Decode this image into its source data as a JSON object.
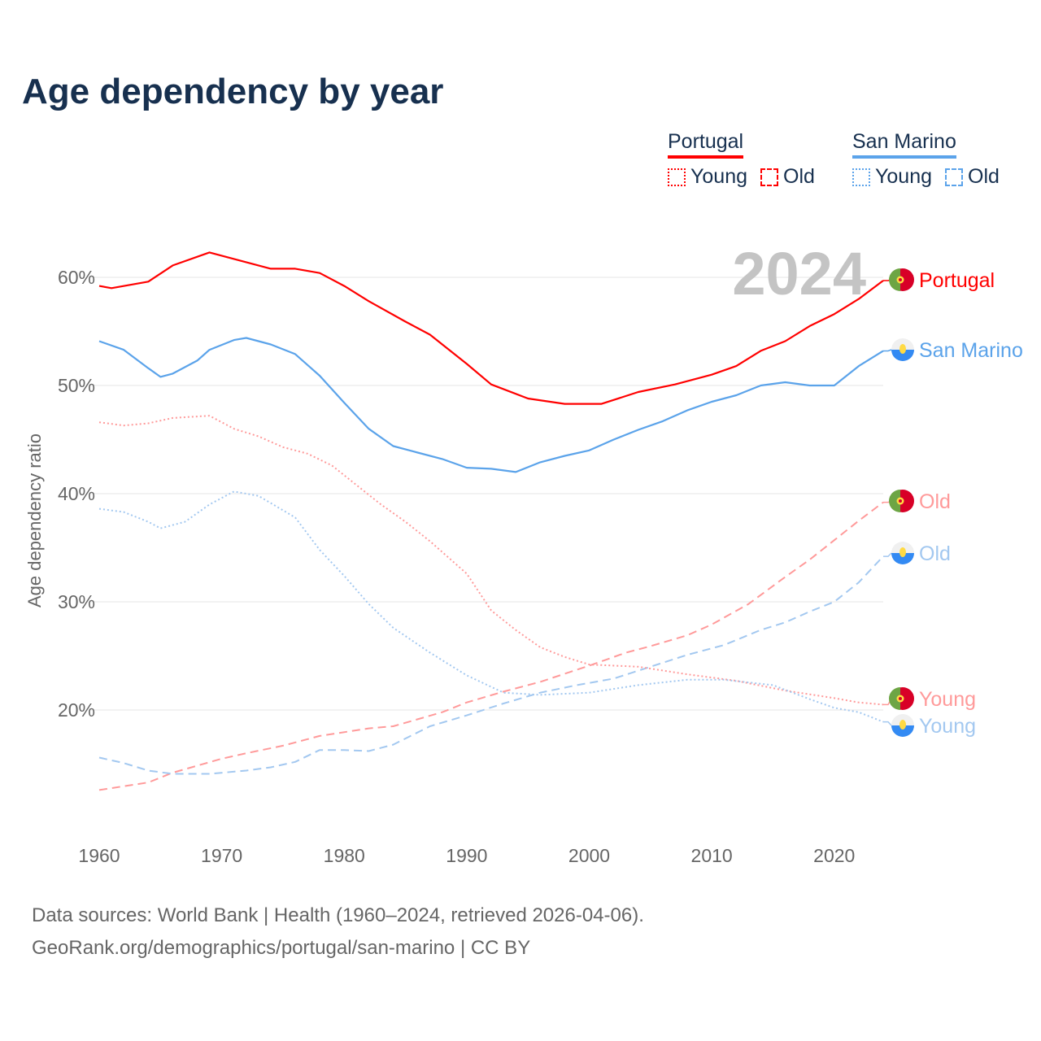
{
  "title": "Age dependency by year",
  "legend": {
    "groups": [
      {
        "name": "Portugal",
        "color": "#ff0000",
        "items": [
          "Young",
          "Old"
        ]
      },
      {
        "name": "San Marino",
        "color": "#5ba3ea",
        "items": [
          "Young",
          "Old"
        ]
      }
    ]
  },
  "year_overlay": "2024",
  "source": {
    "line1": "Data sources: World Bank | Health (1960–2024, retrieved 2026-04-06).",
    "line2": "GeoRank.org/demographics/portugal/san-marino | CC BY"
  },
  "chart_data": {
    "type": "line",
    "title": "Age dependency by year",
    "xlabel": "",
    "ylabel": "Age dependency ratio",
    "xlim": [
      1960,
      2024
    ],
    "ylim": [
      10,
      65
    ],
    "xticks": [
      1960,
      1970,
      1980,
      1990,
      2000,
      2010,
      2020
    ],
    "yticks": [
      20,
      30,
      40,
      50,
      60
    ],
    "ytick_labels": [
      "20%",
      "30%",
      "40%",
      "50%",
      "60%"
    ],
    "grid": true,
    "series": [
      {
        "name": "Portugal",
        "label": "Portugal",
        "country": "Portugal",
        "style": "solid",
        "color": "#ff0000",
        "points": [
          [
            1960,
            59.2
          ],
          [
            1961,
            59.0
          ],
          [
            1964,
            59.6
          ],
          [
            1966,
            61.1
          ],
          [
            1969,
            62.3
          ],
          [
            1971,
            61.7
          ],
          [
            1974,
            60.8
          ],
          [
            1976,
            60.8
          ],
          [
            1978,
            60.4
          ],
          [
            1980,
            59.2
          ],
          [
            1982,
            57.8
          ],
          [
            1985,
            55.9
          ],
          [
            1987,
            54.7
          ],
          [
            1990,
            52.0
          ],
          [
            1992,
            50.1
          ],
          [
            1995,
            48.8
          ],
          [
            1998,
            48.3
          ],
          [
            2001,
            48.3
          ],
          [
            2004,
            49.4
          ],
          [
            2007,
            50.1
          ],
          [
            2010,
            51.0
          ],
          [
            2012,
            51.8
          ],
          [
            2014,
            53.2
          ],
          [
            2016,
            54.1
          ],
          [
            2018,
            55.5
          ],
          [
            2020,
            56.6
          ],
          [
            2022,
            58.0
          ],
          [
            2024,
            59.7
          ]
        ]
      },
      {
        "name": "San Marino",
        "label": "San Marino",
        "country": "San Marino",
        "style": "solid",
        "color": "#5ba3ea",
        "points": [
          [
            1960,
            54.1
          ],
          [
            1962,
            53.3
          ],
          [
            1964,
            51.6
          ],
          [
            1965,
            50.8
          ],
          [
            1966,
            51.1
          ],
          [
            1968,
            52.3
          ],
          [
            1969,
            53.3
          ],
          [
            1971,
            54.2
          ],
          [
            1972,
            54.4
          ],
          [
            1974,
            53.8
          ],
          [
            1976,
            52.9
          ],
          [
            1978,
            50.9
          ],
          [
            1980,
            48.4
          ],
          [
            1982,
            46.0
          ],
          [
            1984,
            44.4
          ],
          [
            1986,
            43.8
          ],
          [
            1988,
            43.2
          ],
          [
            1990,
            42.4
          ],
          [
            1992,
            42.3
          ],
          [
            1994,
            42.0
          ],
          [
            1996,
            42.9
          ],
          [
            1998,
            43.5
          ],
          [
            2000,
            44.0
          ],
          [
            2002,
            45.0
          ],
          [
            2004,
            45.9
          ],
          [
            2006,
            46.7
          ],
          [
            2008,
            47.7
          ],
          [
            2010,
            48.5
          ],
          [
            2012,
            49.1
          ],
          [
            2014,
            50.0
          ],
          [
            2016,
            50.3
          ],
          [
            2018,
            50.0
          ],
          [
            2020,
            50.0
          ],
          [
            2022,
            51.8
          ],
          [
            2024,
            53.2
          ]
        ]
      },
      {
        "name": "Portugal Old",
        "label": "Old",
        "country": "Portugal",
        "style": "dashed",
        "color": "#ff9a9a",
        "points": [
          [
            1960,
            12.6
          ],
          [
            1964,
            13.3
          ],
          [
            1966,
            14.2
          ],
          [
            1970,
            15.5
          ],
          [
            1972,
            16.0
          ],
          [
            1975,
            16.7
          ],
          [
            1978,
            17.6
          ],
          [
            1982,
            18.3
          ],
          [
            1984,
            18.5
          ],
          [
            1988,
            19.8
          ],
          [
            1990,
            20.7
          ],
          [
            1993,
            21.7
          ],
          [
            1996,
            22.6
          ],
          [
            2000,
            24.1
          ],
          [
            2003,
            25.3
          ],
          [
            2005,
            25.9
          ],
          [
            2008,
            26.9
          ],
          [
            2010,
            27.9
          ],
          [
            2013,
            29.8
          ],
          [
            2016,
            32.3
          ],
          [
            2018,
            33.9
          ],
          [
            2020,
            35.7
          ],
          [
            2022,
            37.5
          ],
          [
            2024,
            39.2
          ]
        ]
      },
      {
        "name": "San Marino Old",
        "label": "Old",
        "country": "San Marino",
        "style": "dashed",
        "color": "#a3c8f0",
        "points": [
          [
            1960,
            15.6
          ],
          [
            1962,
            15.1
          ],
          [
            1964,
            14.4
          ],
          [
            1966,
            14.1
          ],
          [
            1969,
            14.1
          ],
          [
            1972,
            14.4
          ],
          [
            1974,
            14.7
          ],
          [
            1976,
            15.2
          ],
          [
            1978,
            16.3
          ],
          [
            1980,
            16.3
          ],
          [
            1982,
            16.2
          ],
          [
            1984,
            16.8
          ],
          [
            1987,
            18.5
          ],
          [
            1990,
            19.5
          ],
          [
            1993,
            20.6
          ],
          [
            1996,
            21.6
          ],
          [
            1999,
            22.3
          ],
          [
            2002,
            22.9
          ],
          [
            2005,
            24.0
          ],
          [
            2008,
            25.1
          ],
          [
            2011,
            26.0
          ],
          [
            2014,
            27.4
          ],
          [
            2016,
            28.1
          ],
          [
            2018,
            29.1
          ],
          [
            2020,
            30.0
          ],
          [
            2022,
            31.8
          ],
          [
            2024,
            34.2
          ]
        ]
      },
      {
        "name": "Portugal Young",
        "label": "Young",
        "country": "Portugal",
        "style": "dotted",
        "color": "#ff9a9a",
        "points": [
          [
            1960,
            46.6
          ],
          [
            1962,
            46.3
          ],
          [
            1964,
            46.5
          ],
          [
            1966,
            47.0
          ],
          [
            1969,
            47.2
          ],
          [
            1971,
            46.0
          ],
          [
            1973,
            45.3
          ],
          [
            1975,
            44.3
          ],
          [
            1977,
            43.7
          ],
          [
            1979,
            42.6
          ],
          [
            1981,
            40.8
          ],
          [
            1983,
            39.0
          ],
          [
            1985,
            37.4
          ],
          [
            1987,
            35.6
          ],
          [
            1990,
            32.6
          ],
          [
            1992,
            29.2
          ],
          [
            1994,
            27.4
          ],
          [
            1996,
            25.8
          ],
          [
            1998,
            24.9
          ],
          [
            2000,
            24.2
          ],
          [
            2004,
            24.0
          ],
          [
            2008,
            23.3
          ],
          [
            2012,
            22.7
          ],
          [
            2016,
            21.8
          ],
          [
            2020,
            21.1
          ],
          [
            2022,
            20.7
          ],
          [
            2024,
            20.5
          ]
        ]
      },
      {
        "name": "San Marino Young",
        "label": "Young",
        "country": "San Marino",
        "style": "dotted",
        "color": "#a3c8f0",
        "points": [
          [
            1960,
            38.6
          ],
          [
            1962,
            38.3
          ],
          [
            1964,
            37.4
          ],
          [
            1965,
            36.8
          ],
          [
            1967,
            37.4
          ],
          [
            1969,
            39.0
          ],
          [
            1971,
            40.2
          ],
          [
            1973,
            39.8
          ],
          [
            1976,
            37.8
          ],
          [
            1978,
            34.8
          ],
          [
            1980,
            32.4
          ],
          [
            1982,
            29.8
          ],
          [
            1984,
            27.6
          ],
          [
            1987,
            25.3
          ],
          [
            1990,
            23.2
          ],
          [
            1993,
            21.6
          ],
          [
            1996,
            21.4
          ],
          [
            2000,
            21.6
          ],
          [
            2004,
            22.3
          ],
          [
            2008,
            22.8
          ],
          [
            2011,
            22.8
          ],
          [
            2015,
            22.3
          ],
          [
            2018,
            21.0
          ],
          [
            2020,
            20.2
          ],
          [
            2022,
            19.8
          ],
          [
            2024,
            18.9
          ]
        ]
      }
    ]
  }
}
